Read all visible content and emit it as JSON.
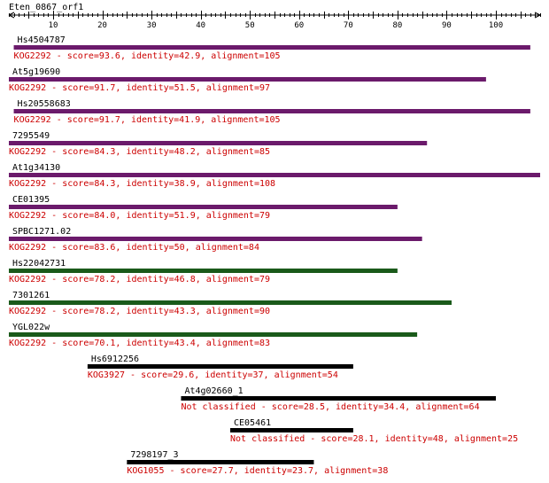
{
  "query_name": "Eten_0867_orf1",
  "axis": {
    "min": 1,
    "max": 109,
    "tick_labels": [
      10,
      20,
      30,
      40,
      50,
      60,
      70,
      80,
      90,
      100
    ]
  },
  "colors": {
    "text": "#000000",
    "annotation": "#cc0000",
    "purple_bar": "#6b1a6b",
    "green_bar": "#1a5a1a",
    "black_bar": "#000000"
  },
  "hits": [
    {
      "name": "Hs4504787",
      "start": 2,
      "end": 107,
      "color": "purple",
      "label": "KOG2292 - score=93.6, identity=42.9, alignment=105"
    },
    {
      "name": "At5g19690",
      "start": 1,
      "end": 98,
      "color": "purple",
      "label": "KOG2292 - score=91.7, identity=51.5, alignment=97"
    },
    {
      "name": "Hs20558683",
      "start": 2,
      "end": 107,
      "color": "purple",
      "label": "KOG2292 - score=91.7, identity=41.9, alignment=105"
    },
    {
      "name": "7295549",
      "start": 1,
      "end": 86,
      "color": "purple",
      "label": "KOG2292 - score=84.3, identity=48.2, alignment=85"
    },
    {
      "name": "At1g34130",
      "start": 1,
      "end": 109,
      "color": "purple",
      "label": "KOG2292 - score=84.3, identity=38.9, alignment=108"
    },
    {
      "name": "CE01395",
      "start": 1,
      "end": 80,
      "color": "purple",
      "label": "KOG2292 - score=84.0, identity=51.9, alignment=79"
    },
    {
      "name": "SPBC1271.02",
      "start": 1,
      "end": 85,
      "color": "purple",
      "label": "KOG2292 - score=83.6, identity=50, alignment=84"
    },
    {
      "name": "Hs22042731",
      "start": 1,
      "end": 80,
      "color": "green",
      "label": "KOG2292 - score=78.2, identity=46.8, alignment=79"
    },
    {
      "name": "7301261",
      "start": 1,
      "end": 91,
      "color": "green",
      "label": "KOG2292 - score=78.2, identity=43.3, alignment=90"
    },
    {
      "name": "YGL022w",
      "start": 1,
      "end": 84,
      "color": "green",
      "label": "KOG2292 - score=70.1, identity=43.4, alignment=83"
    },
    {
      "name": "Hs6912256",
      "start": 17,
      "end": 71,
      "color": "black",
      "label": "KOG3927 - score=29.6, identity=37, alignment=54"
    },
    {
      "name": "At4g02660_1",
      "start": 36,
      "end": 100,
      "color": "black",
      "label": "Not classified - score=28.5, identity=34.4, alignment=64"
    },
    {
      "name": "CE05461",
      "start": 46,
      "end": 71,
      "color": "black",
      "label": "Not classified - score=28.1, identity=48, alignment=25"
    },
    {
      "name": "7298197_3",
      "start": 25,
      "end": 63,
      "color": "black",
      "label": "KOG1055 - score=27.7, identity=23.7, alignment=38"
    }
  ]
}
